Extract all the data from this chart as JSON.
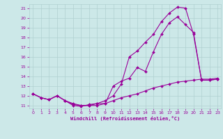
{
  "xlabel": "Windchill (Refroidissement éolien,°C)",
  "bg_color": "#cce8e8",
  "line_color": "#990099",
  "grid_color": "#b0d0d0",
  "xlim": [
    -0.5,
    23.4
  ],
  "ylim": [
    10.7,
    21.4
  ],
  "xticks": [
    0,
    1,
    2,
    3,
    4,
    5,
    6,
    7,
    8,
    9,
    10,
    11,
    12,
    13,
    14,
    15,
    16,
    17,
    18,
    19,
    20,
    21,
    22,
    23
  ],
  "yticks": [
    11,
    12,
    13,
    14,
    15,
    16,
    17,
    18,
    19,
    20,
    21
  ],
  "curve1_x": [
    0,
    1,
    2,
    3,
    4,
    5,
    6,
    7,
    8,
    9,
    10,
    11,
    12,
    13,
    14,
    15,
    16,
    17,
    18,
    19,
    20,
    21,
    22,
    23
  ],
  "curve1_y": [
    12.2,
    11.8,
    11.6,
    12.0,
    11.5,
    11.0,
    10.9,
    11.1,
    11.2,
    11.2,
    13.0,
    13.5,
    13.8,
    14.9,
    14.5,
    16.5,
    18.3,
    19.5,
    20.1,
    19.3,
    18.5,
    13.6,
    13.6,
    13.7
  ],
  "curve2_x": [
    0,
    1,
    2,
    3,
    4,
    5,
    6,
    7,
    8,
    9,
    10,
    11,
    12,
    13,
    14,
    15,
    16,
    17,
    18,
    19,
    20,
    21,
    22,
    23
  ],
  "curve2_y": [
    12.2,
    11.8,
    11.6,
    12.0,
    11.5,
    11.1,
    11.0,
    11.0,
    11.2,
    11.5,
    12.0,
    13.2,
    16.0,
    16.6,
    17.5,
    18.3,
    19.6,
    20.5,
    21.1,
    21.0,
    18.3,
    13.6,
    13.6,
    13.7
  ],
  "curve3_x": [
    0,
    1,
    2,
    3,
    4,
    5,
    6,
    7,
    8,
    9,
    10,
    11,
    12,
    13,
    14,
    15,
    16,
    17,
    18,
    19,
    20,
    21,
    22,
    23
  ],
  "curve3_y": [
    12.2,
    11.8,
    11.6,
    12.0,
    11.5,
    11.2,
    11.0,
    11.0,
    11.0,
    11.2,
    11.5,
    11.8,
    12.0,
    12.2,
    12.5,
    12.8,
    13.0,
    13.2,
    13.4,
    13.5,
    13.6,
    13.7,
    13.7,
    13.8
  ]
}
